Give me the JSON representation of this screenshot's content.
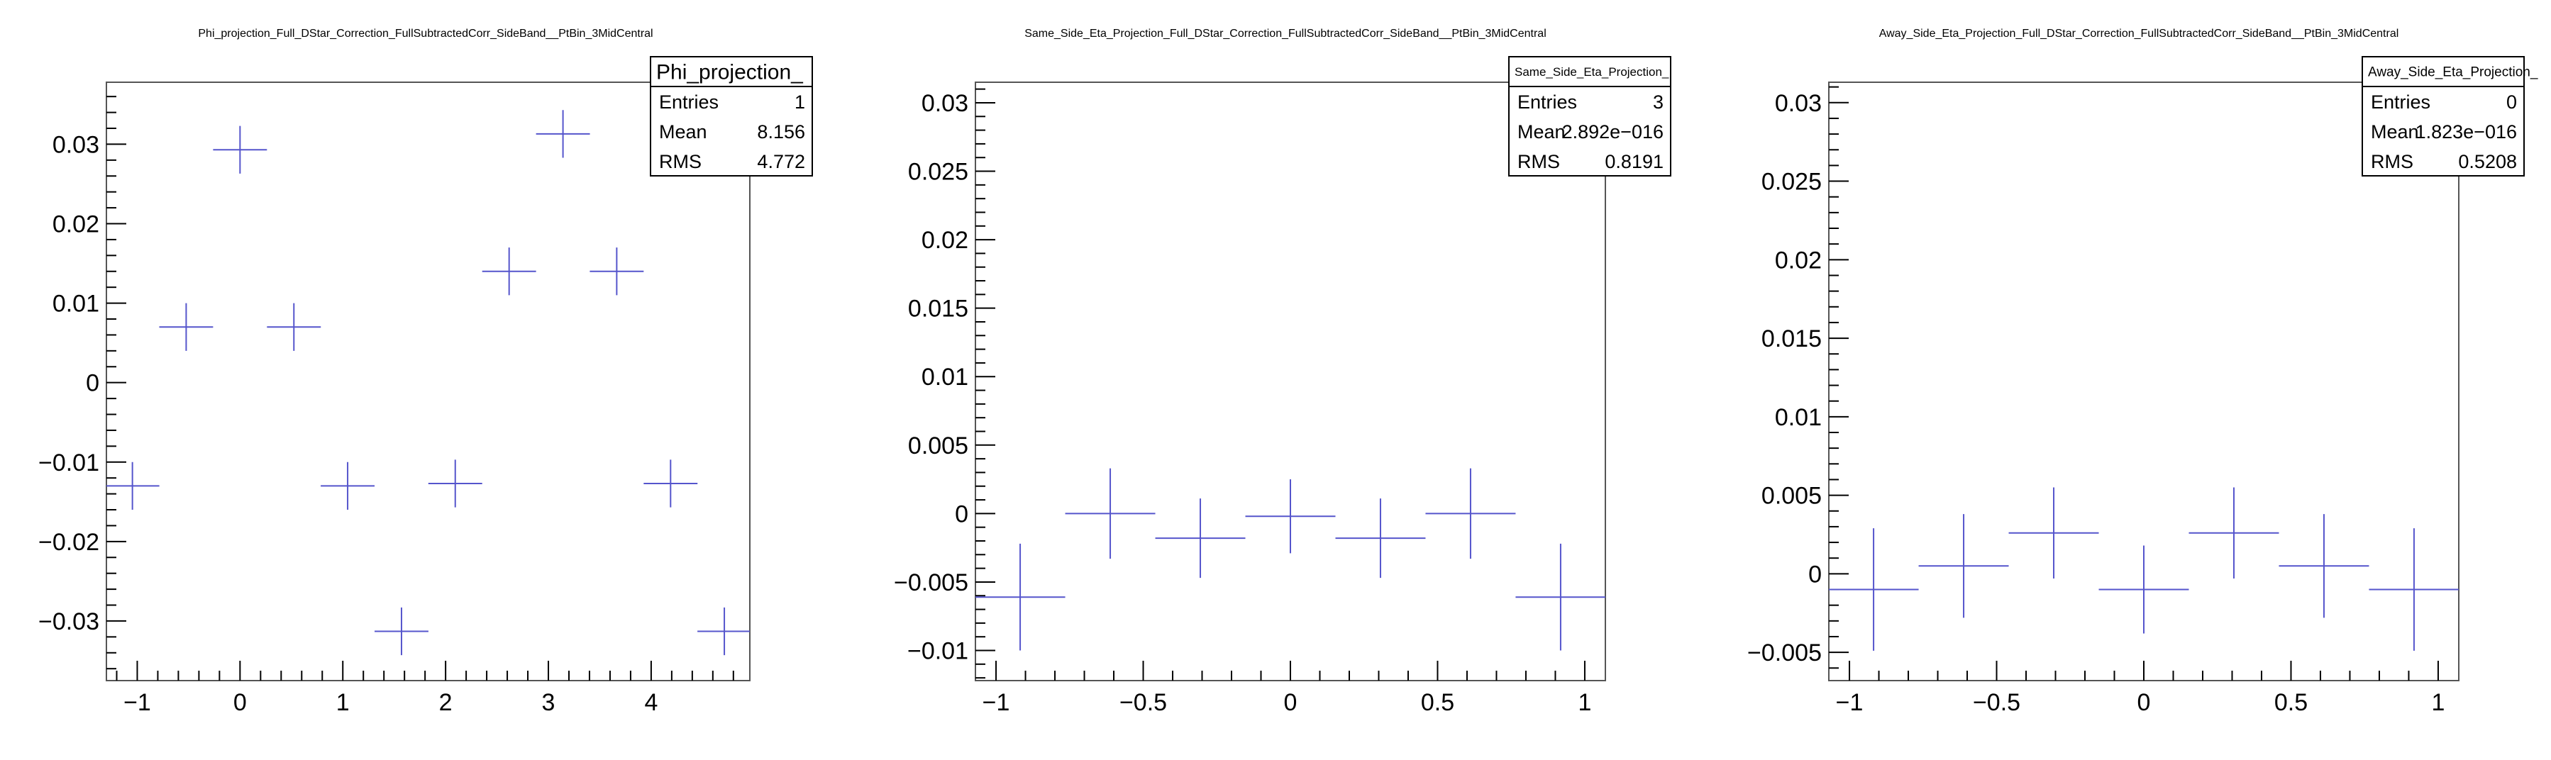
{
  "chart_data": [
    {
      "type": "scatter",
      "title": "Phi_projection_Full_DStar_Correction_FullSubtractedCorr_SideBand__PtBin_3MidCentral",
      "xlim": [
        -1.3,
        4.96
      ],
      "ylim": [
        -0.0375,
        0.0378
      ],
      "xticks": [
        -1,
        0,
        1,
        2,
        3,
        4
      ],
      "xtick_labels": [
        "−1",
        "0",
        "1",
        "2",
        "3",
        "4"
      ],
      "yticks": [
        -0.03,
        -0.02,
        -0.01,
        0,
        0.01,
        0.02,
        0.03
      ],
      "ytick_labels": [
        "−0.03",
        "−0.02",
        "−0.01",
        "0",
        "0.01",
        "0.02",
        "0.03"
      ],
      "x": [
        -1.047,
        -0.524,
        0.0,
        0.524,
        1.047,
        1.571,
        2.094,
        2.618,
        3.142,
        3.665,
        4.189,
        4.712
      ],
      "y": [
        -0.013,
        0.007,
        0.0293,
        0.007,
        -0.013,
        -0.0313,
        -0.0127,
        0.014,
        0.0313,
        0.014,
        -0.0127,
        -0.0313
      ],
      "x_err": [
        0.262,
        0.262,
        0.262,
        0.262,
        0.262,
        0.262,
        0.262,
        0.262,
        0.262,
        0.262,
        0.262,
        0.262
      ],
      "y_err": [
        0.003,
        0.003,
        0.003,
        0.003,
        0.003,
        0.003,
        0.003,
        0.003,
        0.003,
        0.003,
        0.003,
        0.003
      ],
      "stats": {
        "title": "Phi_projection_",
        "rows": [
          {
            "label": "Entries",
            "value": "1"
          },
          {
            "label": "Mean",
            "value": "8.156"
          },
          {
            "label": "RMS",
            "value": "4.772"
          }
        ]
      },
      "grid": false
    },
    {
      "type": "scatter",
      "title": "Same_Side_Eta_Projection_Full_DStar_Correction_FullSubtractedCorr_SideBand__PtBin_3MidCentral",
      "xlim": [
        -1.07,
        1.07
      ],
      "ylim": [
        -0.0122,
        0.0315
      ],
      "xticks": [
        -1,
        -0.5,
        0,
        0.5,
        1
      ],
      "xtick_labels": [
        "−1",
        "−0.5",
        "0",
        "0.5",
        "1"
      ],
      "yticks": [
        -0.01,
        -0.005,
        0,
        0.005,
        0.01,
        0.015,
        0.02,
        0.025,
        0.03
      ],
      "ytick_labels": [
        "−0.01",
        "−0.005",
        "0",
        "0.005",
        "0.01",
        "0.015",
        "0.02",
        "0.025",
        "0.03"
      ],
      "x": [
        -0.918,
        -0.612,
        -0.306,
        0.0,
        0.306,
        0.612,
        0.918
      ],
      "y": [
        -0.0061,
        0.0,
        -0.0018,
        -0.0002,
        -0.0018,
        0.0,
        -0.0061
      ],
      "x_err": [
        0.153,
        0.153,
        0.153,
        0.153,
        0.153,
        0.153,
        0.153
      ],
      "y_err": [
        0.0039,
        0.0033,
        0.0029,
        0.0027,
        0.0029,
        0.0033,
        0.0039
      ],
      "stats": {
        "title": "Same_Side_Eta_Projection_",
        "rows": [
          {
            "label": "Entries",
            "value": "3"
          },
          {
            "label": "Mean",
            "value": "2.892e−016"
          },
          {
            "label": "RMS",
            "value": "0.8191"
          }
        ]
      },
      "grid": false
    },
    {
      "type": "scatter",
      "title": "Away_Side_Eta_Projection_Full_DStar_Correction_FullSubtractedCorr_SideBand__PtBin_3MidCentral",
      "xlim": [
        -1.07,
        1.07
      ],
      "ylim": [
        -0.0068,
        0.0313
      ],
      "xticks": [
        -1,
        -0.5,
        0,
        0.5,
        1
      ],
      "xtick_labels": [
        "−1",
        "−0.5",
        "0",
        "0.5",
        "1"
      ],
      "yticks": [
        -0.005,
        0,
        0.005,
        0.01,
        0.015,
        0.02,
        0.025,
        0.03
      ],
      "ytick_labels": [
        "−0.005",
        "0",
        "0.005",
        "0.01",
        "0.015",
        "0.02",
        "0.025",
        "0.03"
      ],
      "x": [
        -0.918,
        -0.612,
        -0.306,
        0.0,
        0.306,
        0.612,
        0.918
      ],
      "y": [
        -0.001,
        0.0005,
        0.0026,
        -0.001,
        0.0026,
        0.0005,
        -0.001
      ],
      "x_err": [
        0.153,
        0.153,
        0.153,
        0.153,
        0.153,
        0.153,
        0.153
      ],
      "y_err": [
        0.0039,
        0.0033,
        0.0029,
        0.0028,
        0.0029,
        0.0033,
        0.0039
      ],
      "stats": {
        "title": "Away_Side_Eta_Projection_",
        "rows": [
          {
            "label": "Entries",
            "value": "0"
          },
          {
            "label": "Mean",
            "value": "1.823e−016"
          },
          {
            "label": "RMS",
            "value": "0.5208"
          }
        ]
      },
      "grid": false
    }
  ],
  "colors": {
    "marker": "#5555cc",
    "axis": "#000000",
    "frame": "#555555",
    "background": "#ffffff"
  }
}
